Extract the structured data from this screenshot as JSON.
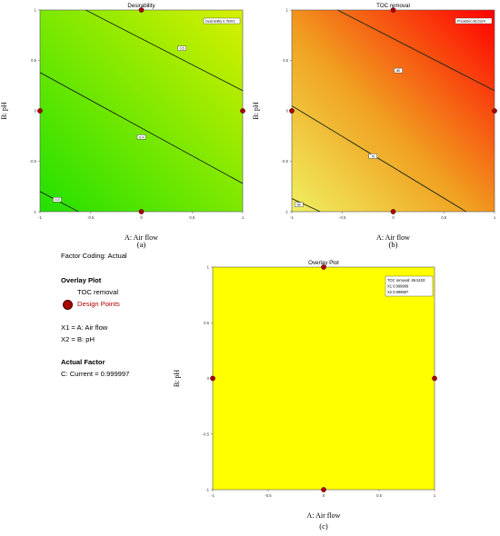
{
  "chart_data": [
    {
      "id": "a",
      "type": "contour",
      "title": "Desirability",
      "xlabel": "A: Air flow",
      "ylabel": "B: pH",
      "xlim": [
        -1,
        1
      ],
      "ylim": [
        -1,
        1
      ],
      "xticks": [
        "-1",
        "-0.5",
        "0",
        "0.5",
        "1"
      ],
      "yticks": [
        "-1",
        "-0.5",
        "0",
        "0.5",
        "1"
      ],
      "prediction_label": "Desirability  0.76903",
      "contours": [
        {
          "label": "0.5",
          "points": [
            [
              -0.55,
              1.0
            ],
            [
              1.0,
              0.2
            ]
          ]
        },
        {
          "label": "0.4",
          "points": [
            [
              -1.0,
              0.38
            ],
            [
              1.0,
              -0.72
            ]
          ]
        },
        {
          "label": "0.3",
          "points": [
            [
              -1.0,
              -0.8
            ],
            [
              -0.62,
              -1.0
            ]
          ]
        }
      ],
      "contour_label_positions": [
        [
          0.4,
          0.62
        ],
        [
          0.0,
          -0.26
        ],
        [
          -0.83,
          -0.88
        ]
      ],
      "design_points": [
        [
          -1,
          0
        ],
        [
          0,
          1
        ],
        [
          1,
          0
        ],
        [
          0,
          -1
        ]
      ],
      "panel_letter": "(a)"
    },
    {
      "id": "b",
      "type": "contour",
      "title": "TOC removal",
      "xlabel": "A: Air flow",
      "ylabel": "B: pH",
      "xlim": [
        -1,
        1
      ],
      "ylim": [
        -1,
        1
      ],
      "xticks": [
        "-1",
        "-0.5",
        "0",
        "0.5",
        "1"
      ],
      "yticks": [
        "-1",
        "-0.5",
        "0",
        "0.5",
        "1"
      ],
      "prediction_label": "Prediction  86.5324",
      "contours": [
        {
          "label": "80",
          "points": [
            [
              -0.55,
              1.0
            ],
            [
              1.0,
              0.2
            ]
          ]
        },
        {
          "label": "70",
          "points": [
            [
              -1.0,
              0.05
            ],
            [
              0.72,
              -1.0
            ]
          ]
        },
        {
          "label": "60",
          "points": [
            [
              -1.0,
              -0.87
            ],
            [
              -0.72,
              -1.0
            ]
          ]
        }
      ],
      "contour_label_positions": [
        [
          0.05,
          0.4
        ],
        [
          -0.2,
          -0.45
        ],
        [
          -0.93,
          -0.93
        ]
      ],
      "design_points": [
        [
          -1,
          0
        ],
        [
          0,
          1
        ],
        [
          1,
          0
        ],
        [
          0,
          -1
        ]
      ],
      "panel_letter": "(b)"
    },
    {
      "id": "c",
      "type": "overlay",
      "title": "Overlay Plot",
      "xlabel": "A: Air flow",
      "ylabel": "B: pH",
      "xlim": [
        -1,
        1
      ],
      "ylim": [
        -1,
        1
      ],
      "xticks": [
        "-1",
        "-0.5",
        "0",
        "0.5",
        "1"
      ],
      "yticks": [
        "-1",
        "-0.5",
        "0",
        "0.5",
        "1"
      ],
      "flag": [
        "TOC removal:  86.5103",
        "X1  0.999989",
        "X2  0.999987"
      ],
      "design_points": [
        [
          -1,
          0
        ],
        [
          0,
          1
        ],
        [
          1,
          0
        ],
        [
          0,
          -1
        ]
      ],
      "panel_letter": "(c)"
    }
  ],
  "colors": {
    "desirability_low": "#22e000",
    "desirability_high": "#d8f000",
    "toc_low": "#f0f060",
    "toc_mid": "#f0a020",
    "toc_high": "#ff0000",
    "overlay_fill": "#ffff00",
    "design_point": "#aa0000"
  },
  "legend_panel": {
    "factor_coding": "Factor Coding: Actual",
    "overlay_heading": "Overlay Plot",
    "toc_item": "TOC removal",
    "design_points": "Design Points",
    "x1": "X1 = A: Air flow",
    "x2": "X2 = B: pH",
    "actual_factor_heading": "Actual Factor",
    "current": "C: Current  = 0.999997"
  }
}
